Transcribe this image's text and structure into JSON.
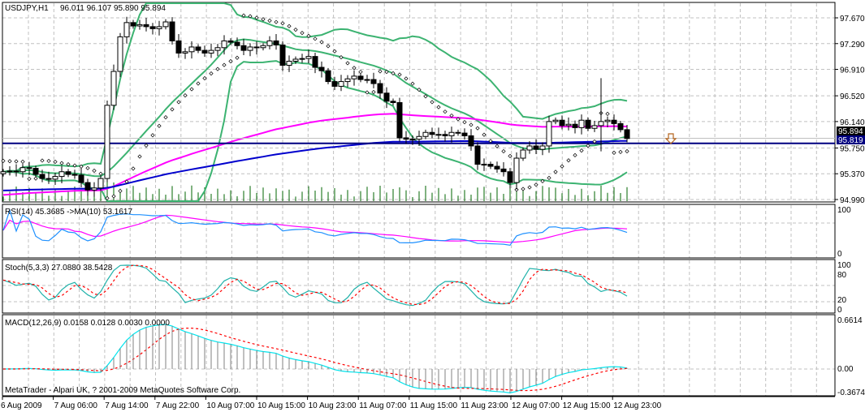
{
  "header": {
    "symbol_label": "USDJPY,H1",
    "ohlc": "96.011 96.107 95.890 95.894"
  },
  "price_axis": {
    "ticks": [
      "97.670",
      "97.290",
      "96.910",
      "96.520",
      "96.140",
      "95.750",
      "95.370",
      "94.990"
    ],
    "tick_values": [
      97.67,
      97.29,
      96.91,
      96.52,
      96.14,
      95.75,
      95.37,
      94.99
    ],
    "bid_label": "95.894",
    "line_label": "95.819"
  },
  "rsi": {
    "label": "RSI(14) 45.3685  ->MA(10) 53.1617",
    "ticks": [
      "100",
      "0"
    ]
  },
  "stoch": {
    "label": "Stoch(5,3,3) 27.0880 38.5428",
    "ticks": [
      "100",
      "80",
      "20",
      "0"
    ]
  },
  "macd": {
    "label": "MACD(12,26,9) 0.0158 0.0128 0.0030 0.0000",
    "ticks": [
      "0.6614",
      "0.00",
      "-0.3674"
    ]
  },
  "footer": {
    "copyright": "MetaTrader - Alpari UK, ? 2001-2009 MetaQuotes Software Corp."
  },
  "time_axis": [
    "6 Aug 2009",
    "7 Aug 06:00",
    "7 Aug 14:00",
    "7 Aug 22:00",
    "10 Aug 07:00",
    "10 Aug 15:00",
    "10 Aug 23:00",
    "11 Aug 07:00",
    "11 Aug 15:00",
    "11 Aug 23:00",
    "12 Aug 07:00",
    "12 Aug 15:00",
    "12 Aug 23:00"
  ],
  "colors": {
    "bands": "#3cb371",
    "ma_fast": "#ff00ff",
    "ma_slow": "#0000cd",
    "hline": "#000080",
    "volume": "#006400",
    "rsi": "#1e90ff",
    "stoch_main": "#20b2aa",
    "stoch_signal": "#ff0000",
    "macd_main": "#00e5ee",
    "macd_signal": "#ff0000",
    "arrow": "#b5651d"
  },
  "chart_data": {
    "type": "candlestick",
    "title": "USDJPY,H1",
    "ylim": [
      94.99,
      97.67
    ],
    "closes": [
      95.4,
      95.41,
      95.4,
      95.46,
      95.45,
      95.36,
      95.3,
      95.29,
      95.33,
      95.4,
      95.36,
      95.35,
      95.24,
      95.13,
      95.16,
      95.3,
      96.38,
      96.88,
      97.39,
      97.6,
      97.55,
      97.57,
      97.54,
      97.51,
      97.54,
      97.61,
      97.33,
      97.15,
      97.17,
      97.24,
      97.19,
      97.15,
      97.19,
      97.23,
      97.33,
      97.31,
      97.26,
      97.19,
      97.24,
      97.23,
      97.26,
      97.33,
      97.27,
      96.97,
      97.03,
      97.06,
      97.07,
      97.1,
      96.94,
      96.89,
      96.73,
      96.66,
      96.73,
      96.77,
      96.81,
      96.76,
      96.76,
      96.7,
      96.56,
      96.44,
      96.42,
      95.9,
      95.88,
      95.88,
      95.92,
      95.98,
      95.95,
      95.95,
      95.93,
      95.98,
      95.97,
      95.93,
      95.78,
      95.51,
      95.51,
      95.48,
      95.44,
      95.4,
      95.24,
      95.6,
      95.72,
      95.78,
      95.73,
      95.78,
      96.14,
      96.16,
      96.08,
      96.1,
      96.05,
      96.16,
      96.04,
      96.08,
      96.14,
      96.16,
      96.11,
      96.02,
      95.89
    ],
    "hline": 95.819
  }
}
